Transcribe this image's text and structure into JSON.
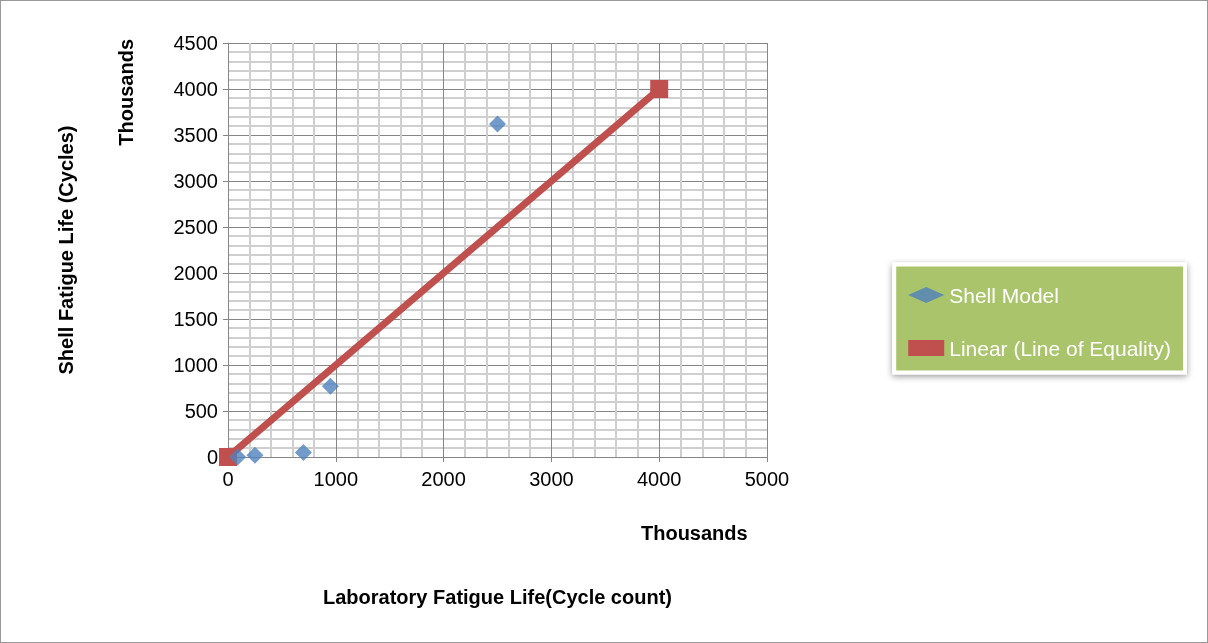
{
  "chart_data": {
    "type": "scatter",
    "xlabel": "Laboratory Fatigue Life(Cycle count)",
    "ylabel": "Shell Fatigue Life (Cycles)",
    "annotations": [
      "Thousands",
      "Thousands"
    ],
    "series": [
      {
        "name": "Shell Model",
        "color": "#4f81bd",
        "marker": "diamond",
        "x": [
          90,
          250,
          700,
          950,
          2500
        ],
        "values": [
          0,
          20,
          50,
          770,
          3620
        ]
      },
      {
        "name": "Linear (Line of Equality)",
        "type": "line",
        "color": "#c0504d",
        "marker": "square",
        "line_style": "solid",
        "x": [
          0,
          4000
        ],
        "values": [
          0,
          4000
        ]
      }
    ],
    "xlim": [
      0,
      5000
    ],
    "xticks": [
      0,
      1000,
      2000,
      3000,
      4000,
      5000
    ],
    "ylim": [
      0,
      4500
    ],
    "yticks": [
      0,
      500,
      1000,
      1500,
      2000,
      2500,
      3000,
      3500,
      4000,
      4500
    ],
    "grid": true,
    "legend": "right"
  }
}
